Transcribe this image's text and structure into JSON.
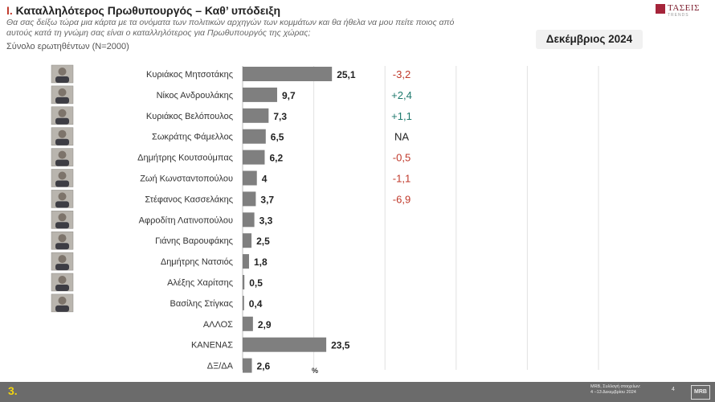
{
  "header": {
    "number": "I.",
    "title": "Καταλληλότερος  Πρωθυπουργός – Καθ’ υπόδειξη",
    "subtitle": "Θα σας δείξω τώρα μια κάρτα με τα ονόματα των πολιτικών αρχηγών των κομμάτων και θα ήθελα να μου πείτε ποιος από αυτούς κατά τη γνώμη σας είναι ο καταλληλότερος για Πρωθυπουργός της χώρας;",
    "sample": "Σύνολο ερωτηθέντων (Ν=2000)",
    "date": "Δεκέμβριος 2024"
  },
  "logo": {
    "text": "ΤΑΣΕΙΣ",
    "sub": "TRENDS"
  },
  "chart_data": {
    "type": "bar",
    "orientation": "horizontal",
    "categories": [
      "Κυριάκος Μητσοτάκης",
      "Νίκος Ανδρουλάκης",
      "Κυριάκος Βελόπουλος",
      "Σωκράτης Φάμελλος",
      "Δημήτρης Κουτσούμπας",
      "Ζωή Κωνσταντοπούλου",
      "Στέφανος Κασσελάκης",
      "Αφροδίτη Λατινοπούλου",
      "Γιάνης Βαρουφάκης",
      "Δημήτρης Νατσιός",
      "Αλέξης Χαρίτσης",
      "Βασίλης Στίγκας",
      "ΑΛΛΟΣ",
      "ΚΑΝΕΝΑΣ",
      "ΔΞ/ΔΑ"
    ],
    "values": [
      25.1,
      9.7,
      7.3,
      6.5,
      6.2,
      4,
      3.7,
      3.3,
      2.5,
      1.8,
      0.5,
      0.4,
      2.9,
      23.5,
      2.6
    ],
    "value_labels": [
      "25,1",
      "9,7",
      "7,3",
      "6,5",
      "6,2",
      "4",
      "3,7",
      "3,3",
      "2,5",
      "1,8",
      "0,5",
      "0,4",
      "2,9",
      "23,5",
      "2,6"
    ],
    "changes": [
      "-3,2",
      "+2,4",
      "+1,1",
      "NA",
      "-0,5",
      "-1,1",
      "-6,9",
      "",
      "",
      "",
      "",
      "",
      "",
      "",
      ""
    ],
    "xlabel": "%",
    "xlim": [
      0,
      100
    ],
    "grid": true,
    "bar_color": "#7f7f7f",
    "negative_color": "#c0392b",
    "positive_color": "#1f7a6e",
    "na_color": "#222222"
  },
  "footer": {
    "page": "3.",
    "source_line1": "MRB, Συλλογή στοιχείων:",
    "source_line2": "4 –13 Δεκεμβρίου 2024",
    "page_no": "4",
    "brand": "MRB"
  }
}
